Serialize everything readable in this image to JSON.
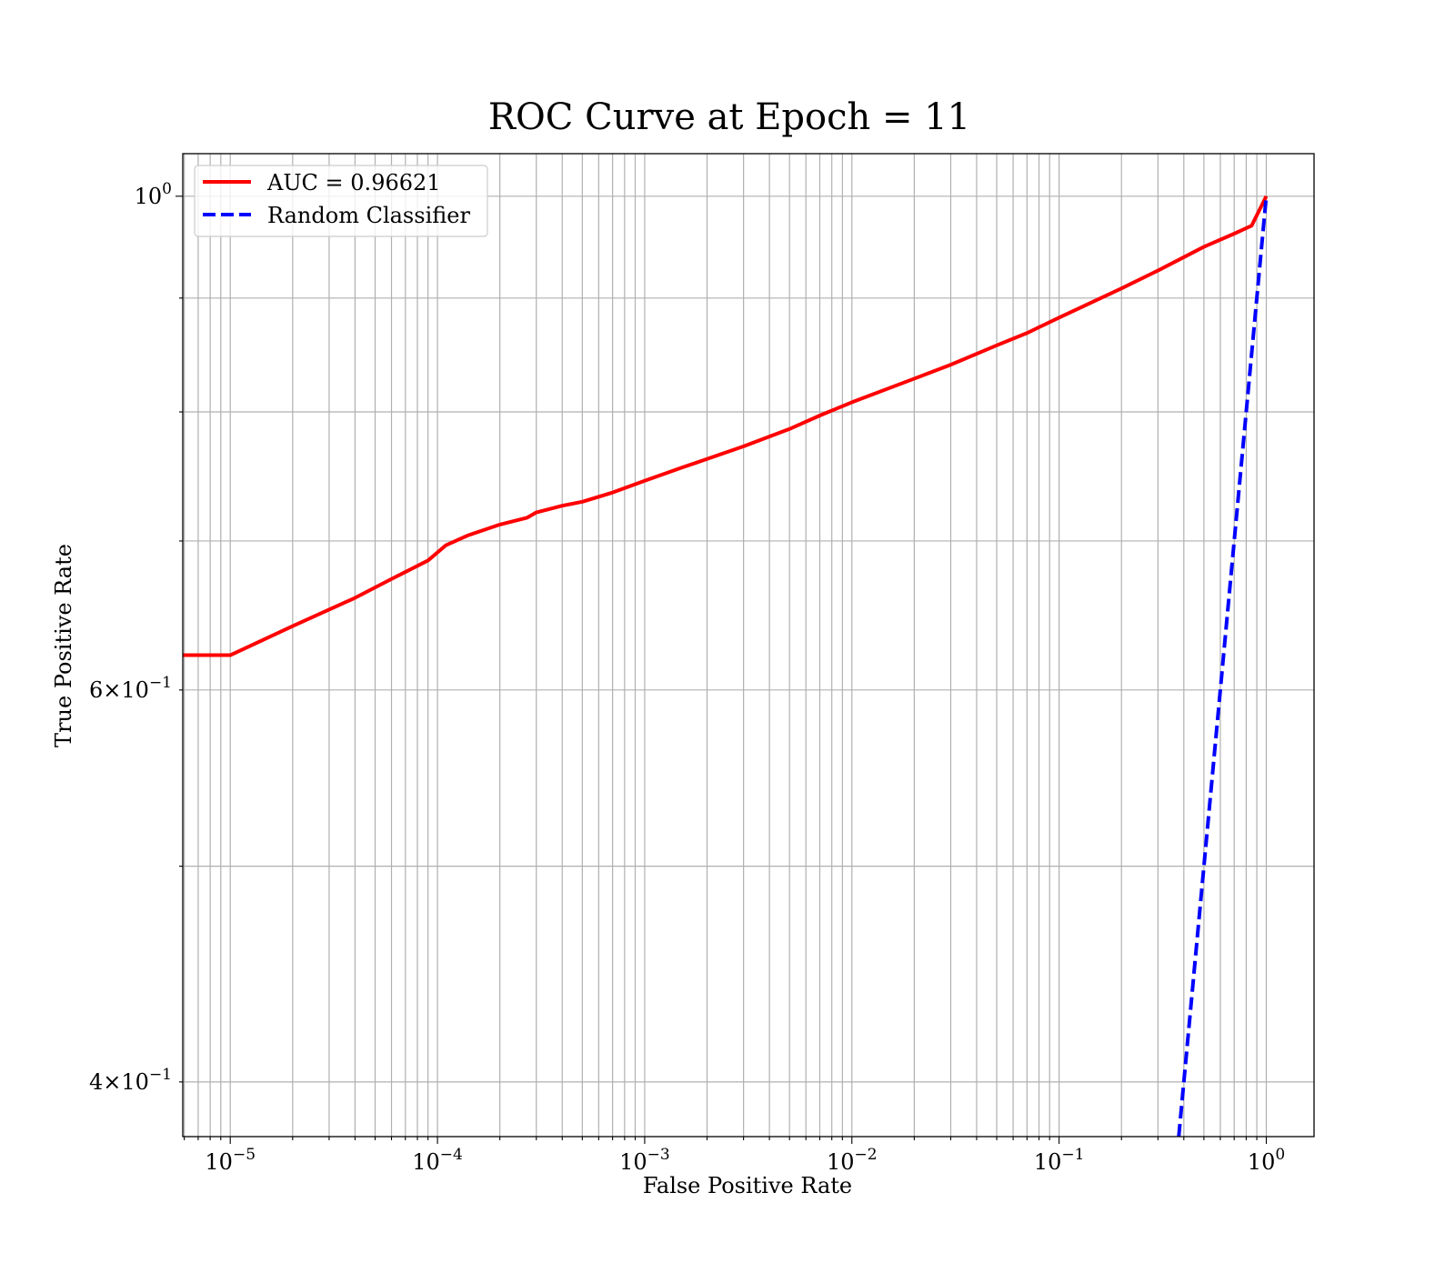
{
  "chart_data": {
    "type": "line",
    "title": "ROC Curve at Epoch = 11",
    "xlabel": "False Positive Rate",
    "ylabel": "True Positive Rate",
    "xscale": "log",
    "yscale": "log",
    "xlim": [
      5.9e-06,
      1.7
    ],
    "ylim": [
      0.378,
      1.045
    ],
    "grid": true,
    "grid_minor": true,
    "legend_position": "upper-left",
    "x_ticks": [
      {
        "value": 1e-05,
        "base": "10",
        "exp": "−5"
      },
      {
        "value": 0.0001,
        "base": "10",
        "exp": "−4"
      },
      {
        "value": 0.001,
        "base": "10",
        "exp": "−3"
      },
      {
        "value": 0.01,
        "base": "10",
        "exp": "−2"
      },
      {
        "value": 0.1,
        "base": "10",
        "exp": "−1"
      },
      {
        "value": 1,
        "base": "10",
        "exp": "0"
      }
    ],
    "y_ticks": [
      {
        "value": 1.0,
        "base": "10",
        "exp": "0"
      },
      {
        "value": 0.6,
        "base": "6×10",
        "exp": "−1"
      },
      {
        "value": 0.4,
        "base": "4×10",
        "exp": "−1"
      }
    ],
    "series": [
      {
        "name": "AUC = 0.96621",
        "color": "#ff0000",
        "line_style": "solid",
        "x": [
          5.9e-06,
          1e-05,
          2e-05,
          4e-05,
          6e-05,
          9e-05,
          0.00011,
          0.00014,
          0.0002,
          0.00027,
          0.0003,
          0.0004,
          0.0005,
          0.0007,
          0.001,
          0.0015,
          0.002,
          0.003,
          0.005,
          0.007,
          0.01,
          0.02,
          0.03,
          0.05,
          0.07,
          0.1,
          0.2,
          0.3,
          0.5,
          0.7,
          0.85,
          1.0
        ],
        "y": [
          0.622,
          0.622,
          0.641,
          0.66,
          0.673,
          0.686,
          0.697,
          0.704,
          0.712,
          0.717,
          0.721,
          0.726,
          0.729,
          0.736,
          0.745,
          0.755,
          0.762,
          0.772,
          0.786,
          0.797,
          0.808,
          0.828,
          0.84,
          0.857,
          0.868,
          0.882,
          0.909,
          0.926,
          0.949,
          0.962,
          0.97,
          1.0
        ]
      },
      {
        "name": "Random Classifier",
        "color": "#0000ff",
        "line_style": "dashed",
        "x": [
          0.378,
          0.4,
          0.5,
          0.6,
          0.7,
          0.8,
          0.9,
          1.0
        ],
        "y": [
          0.378,
          0.4,
          0.5,
          0.6,
          0.7,
          0.8,
          0.9,
          1.0
        ]
      }
    ]
  }
}
